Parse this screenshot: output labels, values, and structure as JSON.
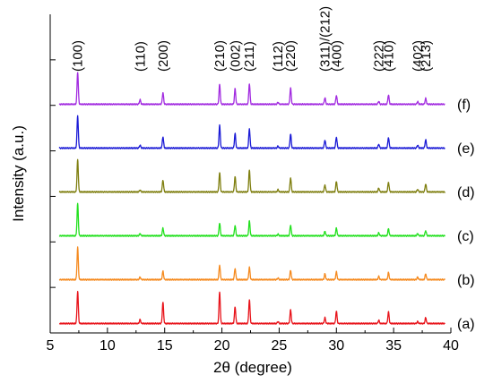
{
  "chart_data": {
    "type": "line",
    "title": "",
    "xlabel": "2θ (degree)",
    "ylabel": "Intensity (a.u.)",
    "xlim": [
      5,
      40
    ],
    "x_ticks": [
      5,
      10,
      15,
      20,
      25,
      30,
      35,
      40
    ],
    "y_ticks_count": 7,
    "grid": false,
    "peak_positions": [
      7.4,
      12.85,
      14.85,
      19.8,
      21.15,
      22.4,
      24.9,
      26.0,
      29.0,
      30.0,
      33.7,
      34.55,
      37.1,
      37.8
    ],
    "peak_labels": [
      {
        "text": "(100)",
        "x": 7.4
      },
      {
        "text": "(110)",
        "x": 12.85
      },
      {
        "text": "(200)",
        "x": 14.85
      },
      {
        "text": "(210)",
        "x": 19.8
      },
      {
        "text": "(002)",
        "x": 21.15
      },
      {
        "text": "(211)",
        "x": 22.4
      },
      {
        "text": "(112)",
        "x": 24.9
      },
      {
        "text": "(220)",
        "x": 26.0
      },
      {
        "text": "(311)/(212)",
        "x": 29.0
      },
      {
        "text": "(400)",
        "x": 30.0
      },
      {
        "text": "(222)",
        "x": 33.7
      },
      {
        "text": "(410)",
        "x": 34.55
      },
      {
        "text": "(402)",
        "x": 37.1
      },
      {
        "text": "(213)",
        "x": 37.8
      }
    ],
    "series": [
      {
        "label": "(a)",
        "color": "#e8141b",
        "intensities": [
          1.0,
          0.12,
          0.66,
          0.98,
          0.52,
          0.74,
          0.06,
          0.42,
          0.18,
          0.38,
          0.1,
          0.36,
          0.06,
          0.18
        ]
      },
      {
        "label": "(b)",
        "color": "#f58a1f",
        "intensities": [
          1.0,
          0.08,
          0.26,
          0.45,
          0.35,
          0.38,
          0.05,
          0.29,
          0.18,
          0.24,
          0.1,
          0.22,
          0.08,
          0.18
        ]
      },
      {
        "label": "(c)",
        "color": "#22e01e",
        "intensities": [
          1.0,
          0.07,
          0.24,
          0.4,
          0.32,
          0.46,
          0.05,
          0.33,
          0.14,
          0.24,
          0.09,
          0.22,
          0.07,
          0.16
        ]
      },
      {
        "label": "(d)",
        "color": "#7f7f10",
        "intensities": [
          1.0,
          0.06,
          0.37,
          0.6,
          0.48,
          0.68,
          0.07,
          0.44,
          0.22,
          0.33,
          0.12,
          0.3,
          0.08,
          0.25
        ]
      },
      {
        "label": "(e)",
        "color": "#1a1ad6",
        "intensities": [
          1.0,
          0.09,
          0.35,
          0.7,
          0.45,
          0.6,
          0.06,
          0.44,
          0.25,
          0.34,
          0.12,
          0.33,
          0.09,
          0.26
        ]
      },
      {
        "label": "(f)",
        "color": "#a22be0",
        "intensities": [
          1.0,
          0.14,
          0.36,
          0.61,
          0.48,
          0.64,
          0.06,
          0.5,
          0.2,
          0.27,
          0.09,
          0.29,
          0.08,
          0.18
        ]
      }
    ]
  }
}
